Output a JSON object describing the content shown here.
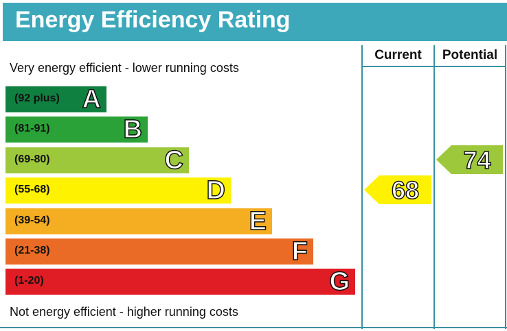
{
  "title": "Energy Efficiency Rating",
  "columns": {
    "current": "Current",
    "potential": "Potential"
  },
  "top_caption": "Very energy efficient - lower running costs",
  "bottom_caption": "Not energy efficient - higher running costs",
  "chart_data": {
    "type": "bar",
    "title": "Energy Efficiency Rating",
    "bands": [
      {
        "letter": "A",
        "range": "(92 plus)",
        "color": "#108041"
      },
      {
        "letter": "B",
        "range": "(81-91)",
        "color": "#2ba237"
      },
      {
        "letter": "C",
        "range": "(69-80)",
        "color": "#9dc83c"
      },
      {
        "letter": "D",
        "range": "(55-68)",
        "color": "#fef200"
      },
      {
        "letter": "E",
        "range": "(39-54)",
        "color": "#f5ad21"
      },
      {
        "letter": "F",
        "range": "(21-38)",
        "color": "#ea6b25"
      },
      {
        "letter": "G",
        "range": "(1-20)",
        "color": "#e01d25"
      }
    ],
    "current": {
      "value": "68",
      "band": "D",
      "color": "#fef200"
    },
    "potential": {
      "value": "74",
      "band": "C",
      "color": "#9dc83c"
    }
  }
}
